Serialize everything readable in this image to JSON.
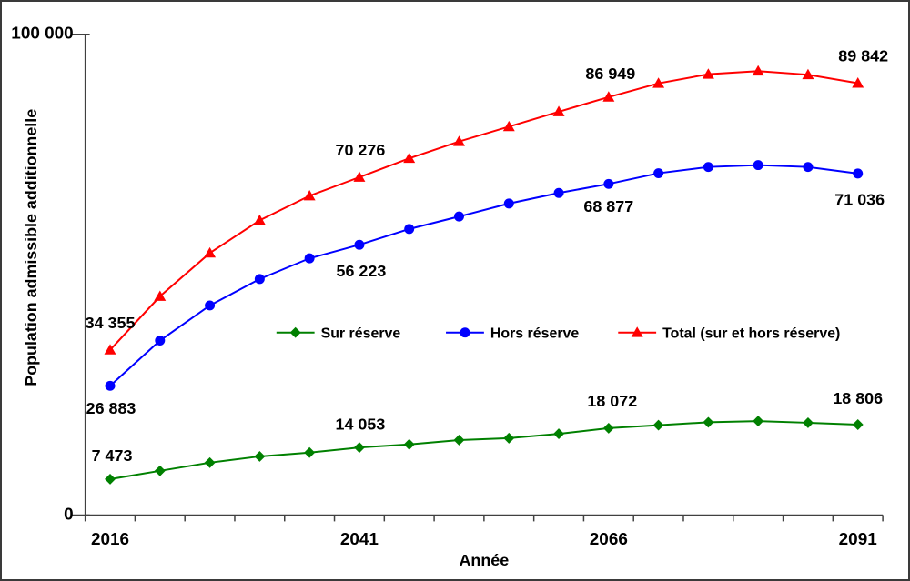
{
  "colors": {
    "background": "#ffffff",
    "axis": "#404040",
    "text": "#000000"
  },
  "chart_data": {
    "type": "line",
    "title": "",
    "xlabel": "Année",
    "ylabel": "Population admissible additionnelle",
    "ylim": [
      0,
      100000
    ],
    "grid": false,
    "legend_position": "inside-center",
    "yticks": [
      {
        "value": 100000,
        "label": "100 000"
      },
      {
        "value": 0,
        "label": "0"
      }
    ],
    "x": [
      2016,
      2021,
      2026,
      2031,
      2036,
      2041,
      2046,
      2051,
      2056,
      2061,
      2066,
      2071,
      2076,
      2081,
      2086,
      2091
    ],
    "xtick_labels": [
      {
        "year": 2016,
        "label": "2016"
      },
      {
        "year": 2041,
        "label": "2041"
      },
      {
        "year": 2066,
        "label": "2066"
      },
      {
        "year": 2091,
        "label": "2091"
      }
    ],
    "series": [
      {
        "name": "Sur réserve",
        "color": "#008000",
        "marker": "diamond",
        "values": [
          7473,
          9200,
          10900,
          12200,
          13000,
          14053,
          14700,
          15600,
          16000,
          16900,
          18072,
          18700,
          19300,
          19550,
          19200,
          18806
        ],
        "point_labels": [
          {
            "year": 2016,
            "text": "7 473",
            "dx": 2,
            "dy": -20
          },
          {
            "year": 2041,
            "text": "14 053",
            "dx": 1,
            "dy": -20
          },
          {
            "year": 2066,
            "text": "18 072",
            "dx": 4,
            "dy": -24
          },
          {
            "year": 2091,
            "text": "18 806",
            "dx": 0,
            "dy": -23
          }
        ]
      },
      {
        "name": "Hors réserve",
        "color": "#0000ff",
        "marker": "circle",
        "values": [
          26883,
          36300,
          43600,
          49100,
          53400,
          56223,
          59500,
          62100,
          64800,
          67000,
          68877,
          71100,
          72400,
          72800,
          72400,
          71036
        ],
        "point_labels": [
          {
            "year": 2016,
            "text": "26 883",
            "dx": 1,
            "dy": 31
          },
          {
            "year": 2041,
            "text": "56 223",
            "dx": 2,
            "dy": 35
          },
          {
            "year": 2066,
            "text": "68 877",
            "dx": 0,
            "dy": 31
          },
          {
            "year": 2091,
            "text": "71 036",
            "dx": 2,
            "dy": 35
          }
        ]
      },
      {
        "name": "Total (sur et hors réserve)",
        "color": "#ff0000",
        "marker": "triangle",
        "values": [
          34355,
          45500,
          54500,
          61300,
          66400,
          70276,
          74200,
          77700,
          80800,
          83900,
          86949,
          89800,
          91700,
          92350,
          91600,
          89842
        ],
        "point_labels": [
          {
            "year": 2016,
            "text": "34 355",
            "dx": 0,
            "dy": -24
          },
          {
            "year": 2041,
            "text": "70 276",
            "dx": 1,
            "dy": -24
          },
          {
            "year": 2066,
            "text": "86 949",
            "dx": 2,
            "dy": -20
          },
          {
            "year": 2091,
            "text": "89 842",
            "dx": 6,
            "dy": -24
          }
        ]
      }
    ]
  }
}
